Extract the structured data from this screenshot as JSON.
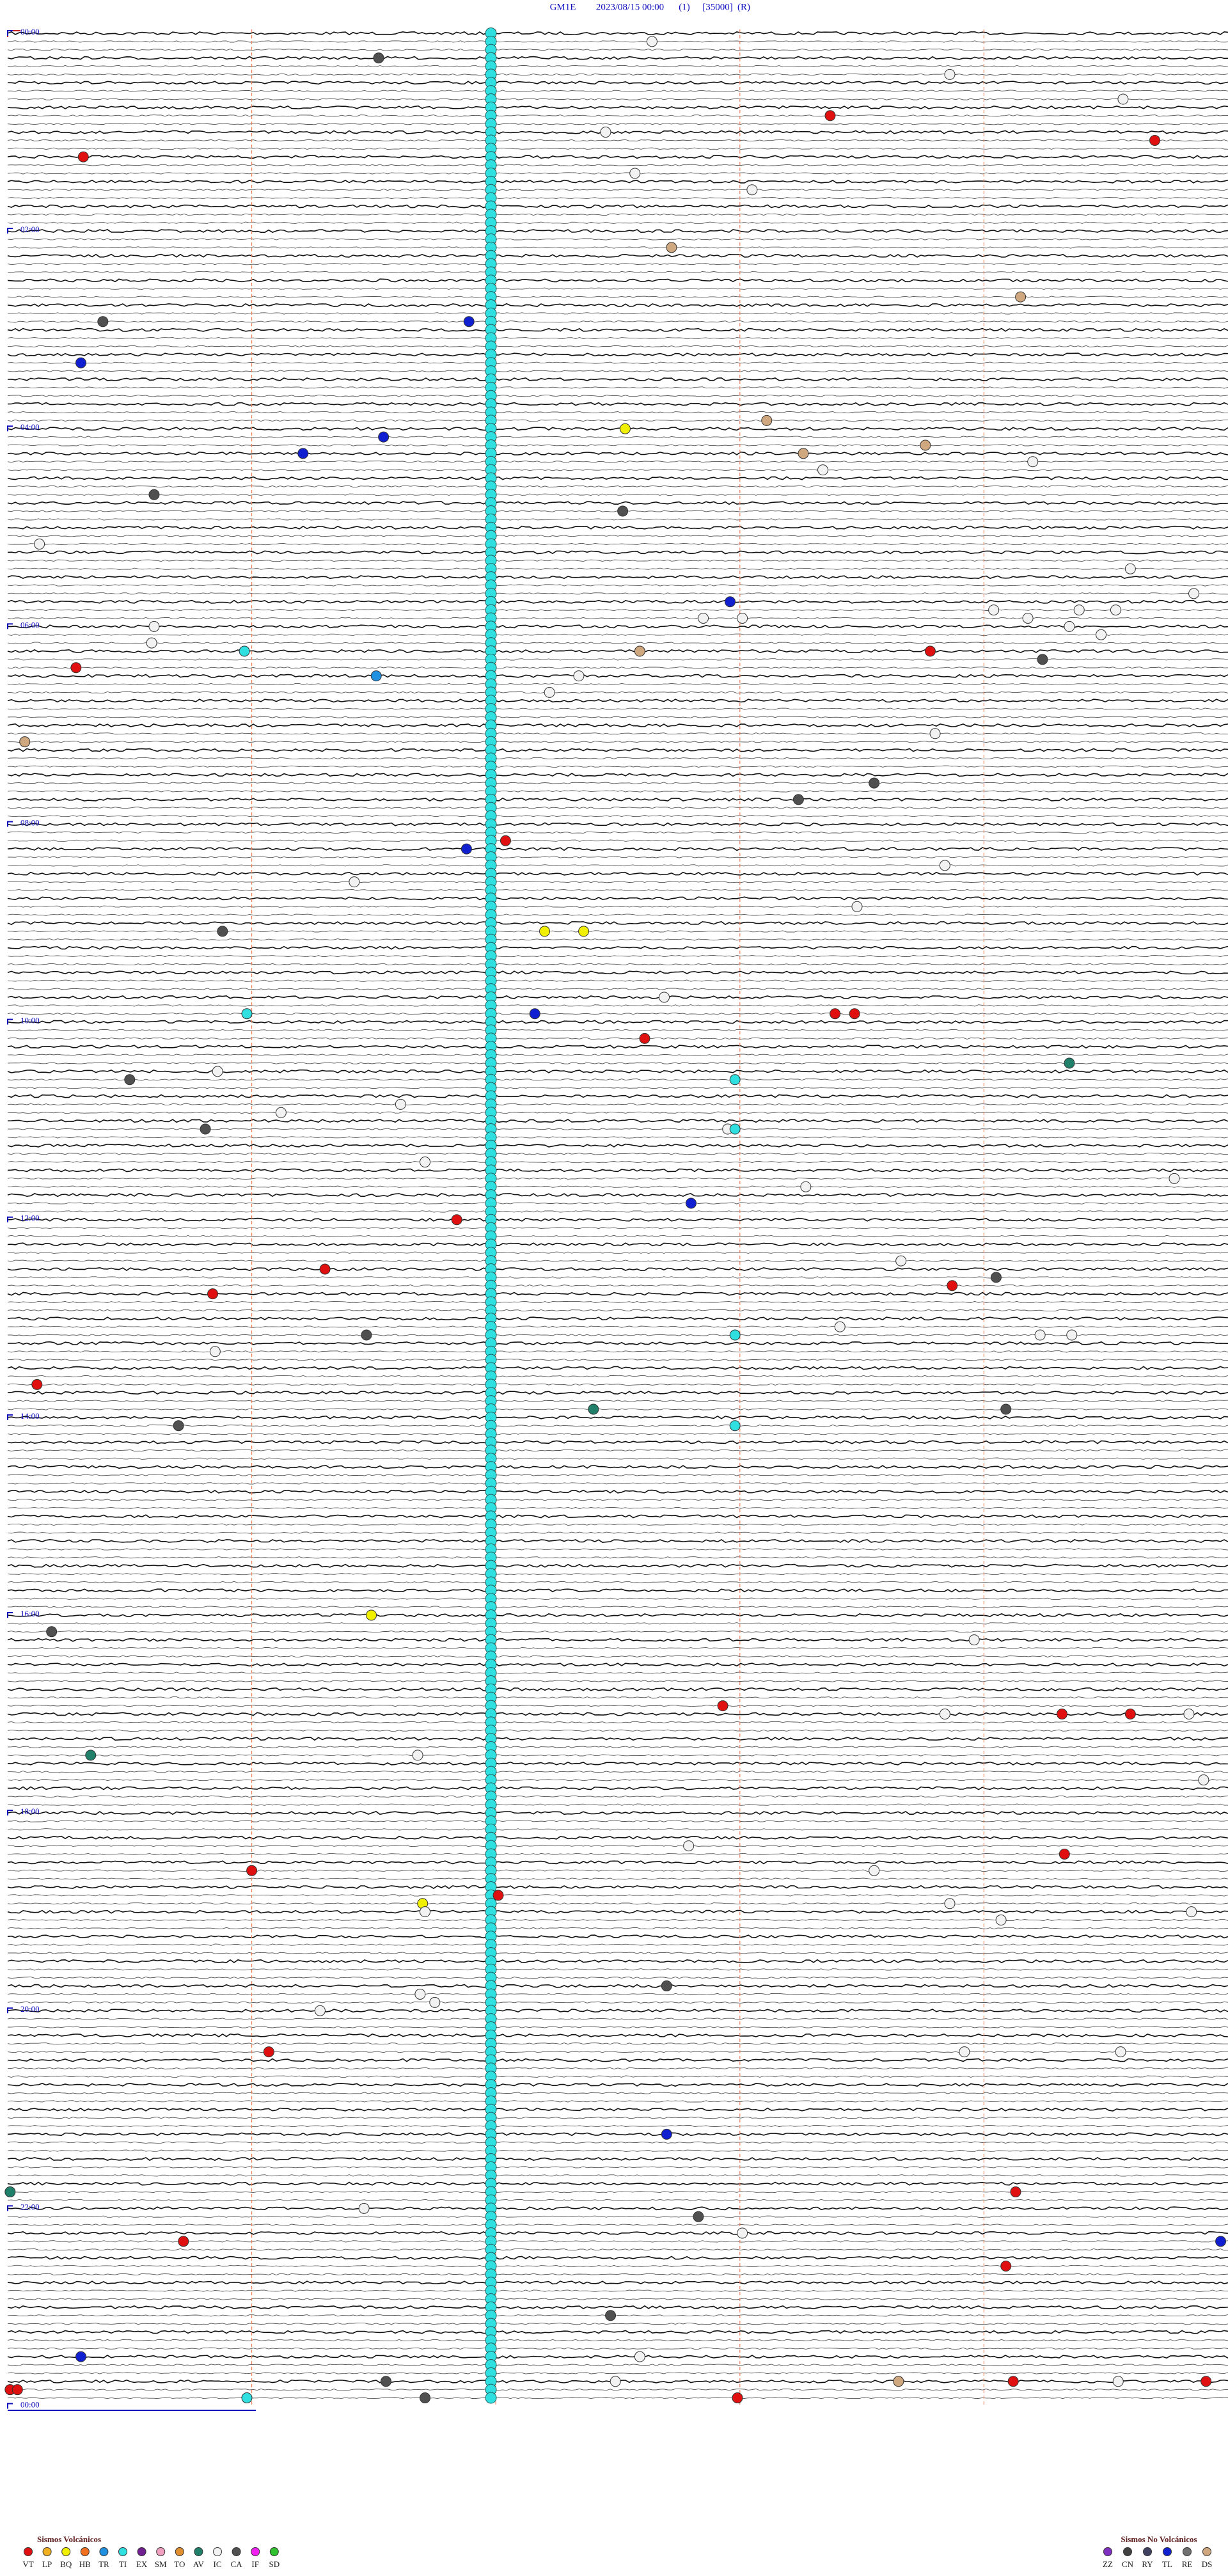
{
  "header": {
    "station": "GM1E",
    "date": "2023/08/15 00:00",
    "channel": "(1)",
    "scale": "[35000]",
    "mode": "(R)"
  },
  "chart_data": {
    "type": "helicorder",
    "minutes_per_line": 5,
    "minute_marks": [
      1,
      2,
      3,
      4
    ],
    "hour_labels": [
      {
        "line": 0,
        "label": "00:00"
      },
      {
        "line": 24,
        "label": "02:00"
      },
      {
        "line": 48,
        "label": "04:00"
      },
      {
        "line": 72,
        "label": "06:00"
      },
      {
        "line": 96,
        "label": "08:00"
      },
      {
        "line": 120,
        "label": "10:00"
      },
      {
        "line": 144,
        "label": "12:00"
      },
      {
        "line": 168,
        "label": "14:00"
      },
      {
        "line": 192,
        "label": "16:00"
      },
      {
        "line": 216,
        "label": "18:00"
      },
      {
        "line": 240,
        "label": "20:00"
      },
      {
        "line": 264,
        "label": "22:00"
      },
      {
        "line": 288,
        "label": "00:00"
      }
    ],
    "column": {
      "minute": 1.98,
      "type": "TI",
      "lines": [
        0,
        1,
        2,
        3,
        4,
        5,
        6,
        7,
        8,
        9,
        10,
        11,
        12,
        13,
        14,
        15,
        16,
        17,
        18,
        19,
        20,
        21,
        22,
        23,
        24,
        25,
        26,
        27,
        28,
        29,
        30,
        31,
        32,
        33,
        34,
        35,
        36,
        37,
        38,
        39,
        40,
        41,
        42,
        43,
        44,
        45,
        46,
        47,
        48,
        49,
        50,
        51,
        52,
        53,
        54,
        55,
        56,
        57,
        58,
        59,
        60,
        61,
        62,
        63,
        64,
        65,
        66,
        67,
        68,
        69,
        70,
        71,
        72,
        73,
        74,
        75,
        76,
        77,
        78,
        79,
        80,
        81,
        82,
        83,
        84,
        85,
        86,
        87,
        88,
        89,
        90,
        91,
        92,
        93,
        94,
        95,
        96,
        97,
        98,
        99,
        100,
        101,
        102,
        103,
        104,
        105,
        106,
        107,
        108,
        109,
        110,
        111,
        112,
        113,
        114,
        115,
        116,
        117,
        118,
        119,
        120,
        121,
        122,
        123,
        124,
        125,
        126,
        127,
        128,
        129,
        130,
        131,
        132,
        133,
        134,
        135,
        136,
        137,
        138,
        139,
        140,
        141,
        142,
        143,
        144,
        145,
        146,
        147,
        148,
        149,
        150,
        151,
        152,
        153,
        154,
        155,
        156,
        157,
        158,
        159,
        160,
        161,
        162,
        163,
        164,
        165,
        166,
        167,
        168,
        169,
        170,
        171,
        172,
        173,
        174,
        175,
        176,
        177,
        178,
        179,
        180,
        181,
        182,
        183,
        184,
        185,
        186,
        187,
        188,
        189,
        190,
        191,
        192,
        193,
        194,
        195,
        196,
        197,
        198,
        199,
        200,
        201,
        202,
        203,
        204,
        205,
        206,
        207,
        208,
        209,
        210,
        211,
        212,
        213,
        214,
        215,
        216,
        217,
        218,
        219,
        220,
        221,
        222,
        223,
        224,
        225,
        226,
        227,
        228,
        229,
        230,
        231,
        232,
        233,
        234,
        235,
        236,
        237,
        238,
        239,
        240,
        241,
        242,
        243,
        244,
        245,
        246,
        247,
        248,
        249,
        250,
        251,
        252,
        253,
        254,
        255,
        256,
        257,
        258,
        259,
        260,
        261,
        262,
        263,
        264,
        265,
        266,
        267,
        268,
        269,
        270,
        271,
        272,
        273,
        274,
        275,
        276,
        277,
        278,
        279,
        280,
        281,
        282,
        283,
        284,
        285,
        286,
        287
      ]
    },
    "events": [
      [
        1,
        2.64,
        "IC"
      ],
      [
        3,
        1.52,
        "CA"
      ],
      [
        5,
        3.86,
        "IC"
      ],
      [
        8,
        4.57,
        "IC"
      ],
      [
        10,
        3.37,
        "VT"
      ],
      [
        12,
        2.45,
        "IC"
      ],
      [
        13,
        4.7,
        "VT"
      ],
      [
        15,
        0.31,
        "VT"
      ],
      [
        17,
        2.57,
        "IC"
      ],
      [
        19,
        3.05,
        "IC"
      ],
      [
        26,
        2.72,
        "DS"
      ],
      [
        32,
        4.15,
        "DS"
      ],
      [
        35,
        0.39,
        "CA"
      ],
      [
        35,
        1.89,
        "TL"
      ],
      [
        40,
        0.3,
        "TL"
      ],
      [
        47,
        3.11,
        "DS"
      ],
      [
        48,
        2.53,
        "BQ"
      ],
      [
        49,
        1.54,
        "TL"
      ],
      [
        50,
        3.76,
        "DS"
      ],
      [
        51,
        1.21,
        "TL"
      ],
      [
        51,
        3.26,
        "DS"
      ],
      [
        52,
        4.2,
        "IC"
      ],
      [
        53,
        3.34,
        "IC"
      ],
      [
        56,
        0.6,
        "CA"
      ],
      [
        58,
        2.52,
        "CA"
      ],
      [
        62,
        0.13,
        "IC"
      ],
      [
        65,
        4.6,
        "IC"
      ],
      [
        68,
        4.86,
        "IC"
      ],
      [
        69,
        2.96,
        "TL"
      ],
      [
        70,
        4.04,
        "IC"
      ],
      [
        70,
        4.39,
        "IC"
      ],
      [
        70,
        4.54,
        "IC"
      ],
      [
        71,
        2.85,
        "IC"
      ],
      [
        71,
        3.01,
        "IC"
      ],
      [
        71,
        4.18,
        "IC"
      ],
      [
        72,
        0.6,
        "IC"
      ],
      [
        72,
        4.35,
        "IC"
      ],
      [
        73,
        4.48,
        "IC"
      ],
      [
        74,
        0.59,
        "IC"
      ],
      [
        75,
        0.97,
        "TI"
      ],
      [
        75,
        2.59,
        "DS"
      ],
      [
        75,
        3.78,
        "VT"
      ],
      [
        76,
        4.24,
        "CA"
      ],
      [
        77,
        0.28,
        "VT"
      ],
      [
        78,
        1.51,
        "TR"
      ],
      [
        78,
        2.34,
        "IC"
      ],
      [
        80,
        2.22,
        "IC"
      ],
      [
        85,
        3.8,
        "IC"
      ],
      [
        86,
        0.07,
        "DS"
      ],
      [
        91,
        3.55,
        "CA"
      ],
      [
        93,
        3.24,
        "CA"
      ],
      [
        98,
        2.04,
        "VT"
      ],
      [
        99,
        1.88,
        "TL"
      ],
      [
        101,
        3.84,
        "IC"
      ],
      [
        103,
        1.42,
        "IC"
      ],
      [
        106,
        3.48,
        "IC"
      ],
      [
        109,
        0.88,
        "CA"
      ],
      [
        109,
        2.2,
        "BQ"
      ],
      [
        109,
        2.36,
        "BQ"
      ],
      [
        117,
        2.69,
        "IC"
      ],
      [
        119,
        0.98,
        "TI"
      ],
      [
        119,
        2.16,
        "TL"
      ],
      [
        119,
        3.39,
        "VT"
      ],
      [
        119,
        3.47,
        "VT"
      ],
      [
        122,
        2.61,
        "VT"
      ],
      [
        125,
        4.35,
        "AV"
      ],
      [
        126,
        0.86,
        "IC"
      ],
      [
        127,
        0.5,
        "CA"
      ],
      [
        127,
        2.98,
        "TI"
      ],
      [
        130,
        1.61,
        "IC"
      ],
      [
        131,
        1.12,
        "IC"
      ],
      [
        133,
        0.81,
        "CA"
      ],
      [
        133,
        2.95,
        "IC"
      ],
      [
        133,
        2.98,
        "TI"
      ],
      [
        137,
        1.71,
        "IC"
      ],
      [
        139,
        4.78,
        "IC"
      ],
      [
        140,
        3.27,
        "IC"
      ],
      [
        142,
        2.8,
        "TL"
      ],
      [
        144,
        1.84,
        "VT"
      ],
      [
        149,
        3.66,
        "IC"
      ],
      [
        150,
        1.3,
        "VT"
      ],
      [
        151,
        4.05,
        "CA"
      ],
      [
        152,
        3.87,
        "VT"
      ],
      [
        153,
        0.84,
        "VT"
      ],
      [
        157,
        3.41,
        "IC"
      ],
      [
        158,
        1.47,
        "CA"
      ],
      [
        158,
        2.98,
        "TI"
      ],
      [
        158,
        4.23,
        "IC"
      ],
      [
        158,
        4.36,
        "IC"
      ],
      [
        160,
        0.85,
        "IC"
      ],
      [
        164,
        0.12,
        "VT"
      ],
      [
        167,
        2.4,
        "AV"
      ],
      [
        167,
        4.09,
        "CA"
      ],
      [
        169,
        0.7,
        "CA"
      ],
      [
        169,
        2.98,
        "TI"
      ],
      [
        192,
        1.49,
        "BQ"
      ],
      [
        194,
        0.18,
        "CA"
      ],
      [
        195,
        3.96,
        "IC"
      ],
      [
        203,
        2.93,
        "VT"
      ],
      [
        204,
        3.84,
        "IC"
      ],
      [
        204,
        4.32,
        "VT"
      ],
      [
        204,
        4.6,
        "VT"
      ],
      [
        204,
        4.84,
        "IC"
      ],
      [
        209,
        0.34,
        "AV"
      ],
      [
        209,
        1.68,
        "IC"
      ],
      [
        212,
        4.9,
        "IC"
      ],
      [
        220,
        2.79,
        "IC"
      ],
      [
        221,
        4.33,
        "VT"
      ],
      [
        223,
        1.0,
        "VT"
      ],
      [
        223,
        3.55,
        "IC"
      ],
      [
        226,
        2.01,
        "VT"
      ],
      [
        227,
        1.7,
        "BQ"
      ],
      [
        227,
        3.86,
        "IC"
      ],
      [
        228,
        1.71,
        "IC"
      ],
      [
        228,
        4.85,
        "IC"
      ],
      [
        229,
        4.07,
        "IC"
      ],
      [
        237,
        2.7,
        "CA"
      ],
      [
        238,
        1.69,
        "IC"
      ],
      [
        239,
        1.75,
        "IC"
      ],
      [
        240,
        1.28,
        "IC"
      ],
      [
        245,
        1.07,
        "VT"
      ],
      [
        245,
        3.92,
        "IC"
      ],
      [
        245,
        4.56,
        "IC"
      ],
      [
        255,
        2.7,
        "TL"
      ],
      [
        262,
        0.01,
        "AV"
      ],
      [
        262,
        4.13,
        "VT"
      ],
      [
        264,
        1.46,
        "IC"
      ],
      [
        265,
        2.83,
        "CA"
      ],
      [
        267,
        3.01,
        "IC"
      ],
      [
        268,
        0.72,
        "VT"
      ],
      [
        268,
        4.97,
        "TL"
      ],
      [
        271,
        4.09,
        "VT"
      ],
      [
        277,
        2.47,
        "CA"
      ],
      [
        282,
        0.3,
        "TL"
      ],
      [
        282,
        2.59,
        "IC"
      ],
      [
        285,
        1.55,
        "CA"
      ],
      [
        285,
        2.49,
        "IC"
      ],
      [
        285,
        3.65,
        "DS"
      ],
      [
        285,
        4.12,
        "VT"
      ],
      [
        285,
        4.55,
        "IC"
      ],
      [
        285,
        4.91,
        "VT"
      ],
      [
        286,
        0.01,
        "VT"
      ],
      [
        286,
        0.04,
        "VT"
      ],
      [
        287,
        0.98,
        "TI"
      ],
      [
        287,
        1.71,
        "CA"
      ],
      [
        287,
        2.99,
        "VT"
      ]
    ]
  },
  "legend": {
    "volcanic_title": "Sismos Volcánicos",
    "volcanic": [
      {
        "label": "VT",
        "color": "#e01010"
      },
      {
        "label": "LP",
        "color": "#f0b020"
      },
      {
        "label": "BQ",
        "color": "#f0f000"
      },
      {
        "label": "HB",
        "color": "#f07020"
      },
      {
        "label": "TR",
        "color": "#2090e0"
      },
      {
        "label": "TI",
        "color": "#30e0e0"
      },
      {
        "label": "EX",
        "color": "#702090"
      },
      {
        "label": "SM",
        "color": "#f0a0c0"
      },
      {
        "label": "TO",
        "color": "#e09030"
      },
      {
        "label": "AV",
        "color": "#20806a"
      },
      {
        "label": "IC",
        "color": "#f2f2f2"
      },
      {
        "label": "CA",
        "color": "#505050"
      },
      {
        "label": "IF",
        "color": "#f020f0"
      },
      {
        "label": "SD",
        "color": "#30c030"
      }
    ],
    "non_volcanic_title": "Sismos No Volcánicos",
    "non_volcanic": [
      {
        "label": "ZZ",
        "color": "#8030c0"
      },
      {
        "label": "CN",
        "color": "#404040"
      },
      {
        "label": "RY",
        "color": "#404060"
      },
      {
        "label": "TL",
        "color": "#1020d0"
      },
      {
        "label": "RE",
        "color": "#707070"
      },
      {
        "label": "DS",
        "color": "#d0a880"
      }
    ]
  }
}
